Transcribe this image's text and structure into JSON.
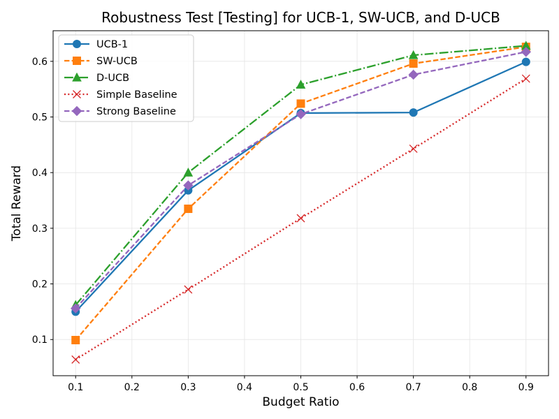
{
  "chart_data": {
    "type": "line",
    "title": "Robustness Test [Testing] for UCB-1, SW-UCB, and D-UCB",
    "xlabel": "Budget Ratio",
    "ylabel": "Total Reward",
    "x": [
      0.1,
      0.3,
      0.5,
      0.7,
      0.9
    ],
    "xlim": [
      0.06,
      0.94
    ],
    "ylim": [
      0.035,
      0.655
    ],
    "xticks": [
      "0.1",
      "0.2",
      "0.3",
      "0.4",
      "0.5",
      "0.6",
      "0.7",
      "0.8",
      "0.9"
    ],
    "yticks": [
      "0.1",
      "0.2",
      "0.3",
      "0.4",
      "0.5",
      "0.6"
    ],
    "grid": true,
    "legend_position": "top-left",
    "series": [
      {
        "name": "UCB-1",
        "values": [
          0.15,
          0.368,
          0.507,
          0.508,
          0.599
        ],
        "color": "#1f77b4",
        "dash": "solid",
        "marker": "circle"
      },
      {
        "name": "SW-UCB",
        "values": [
          0.099,
          0.335,
          0.524,
          0.596,
          0.626
        ],
        "color": "#ff7f0e",
        "dash": "dashed",
        "marker": "square"
      },
      {
        "name": "D-UCB",
        "values": [
          0.162,
          0.4,
          0.558,
          0.611,
          0.628
        ],
        "color": "#2ca02c",
        "dash": "dashdot",
        "marker": "triangle"
      },
      {
        "name": "Simple Baseline",
        "values": [
          0.064,
          0.19,
          0.318,
          0.443,
          0.569
        ],
        "color": "#d62728",
        "dash": "dotted",
        "marker": "x"
      },
      {
        "name": "Strong Baseline",
        "values": [
          0.156,
          0.377,
          0.505,
          0.576,
          0.617
        ],
        "color": "#9467bd",
        "dash": "dashed",
        "marker": "diamond"
      }
    ]
  }
}
